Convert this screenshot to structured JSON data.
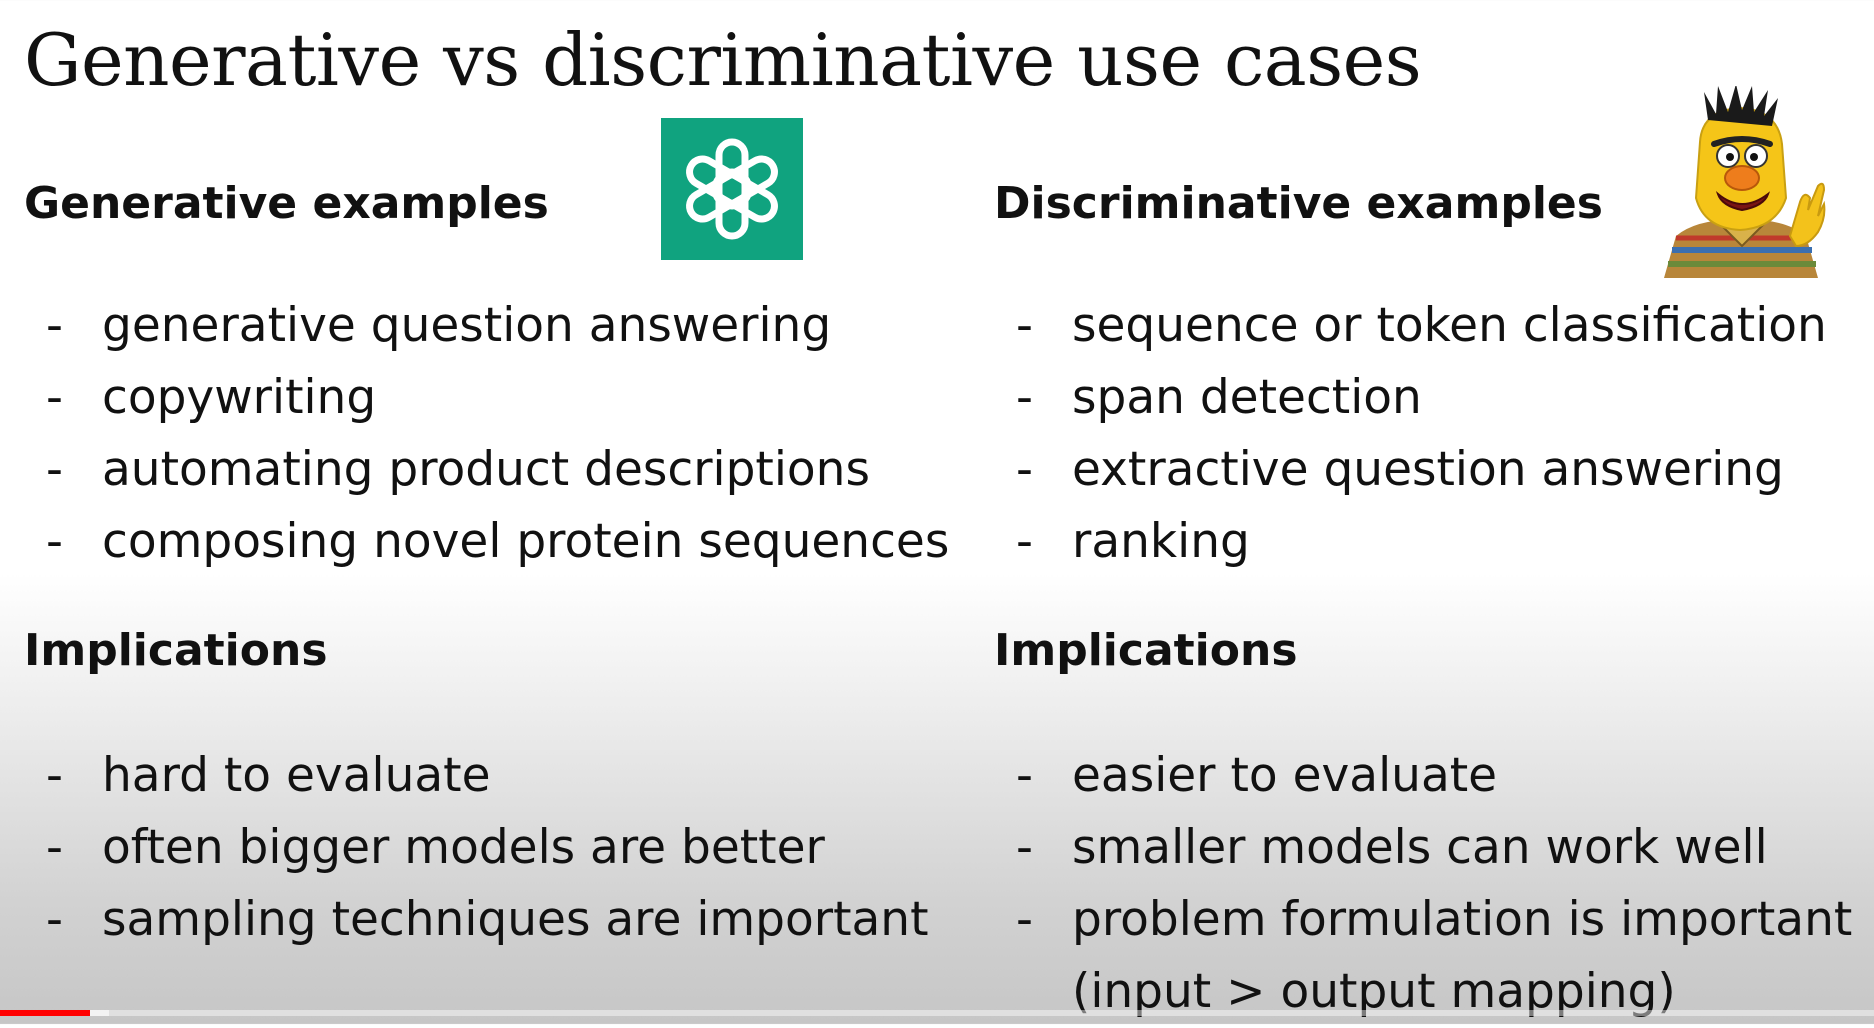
{
  "slide": {
    "title": "Generative vs discriminative use cases"
  },
  "left": {
    "examples_heading": "Generative examples",
    "examples": [
      "generative question answering",
      "copywriting",
      "automating product descriptions",
      "composing novel protein sequences"
    ],
    "implications_heading": "Implications",
    "implications": [
      "hard to evaluate",
      "often bigger models are better",
      "sampling techniques are important"
    ],
    "logo_icon": "openai-logo-icon"
  },
  "right": {
    "examples_heading": "Discriminative examples",
    "examples": [
      "sequence or token classification",
      "span detection",
      "extractive question answering",
      "ranking"
    ],
    "implications_heading": "Implications",
    "implications": [
      "easier to evaluate",
      "smaller models can work well",
      "problem formulation is important"
    ],
    "implications_continuation": "(input > output mapping)",
    "image_icon": "bert-muppet-icon"
  },
  "bullet_marker": "-",
  "video_progress": {
    "played_fraction": 0.048,
    "buffered_fraction": 0.058,
    "played_color": "#ff0000"
  },
  "colors": {
    "logo_bg": "#10a37f",
    "text": "#111111"
  }
}
